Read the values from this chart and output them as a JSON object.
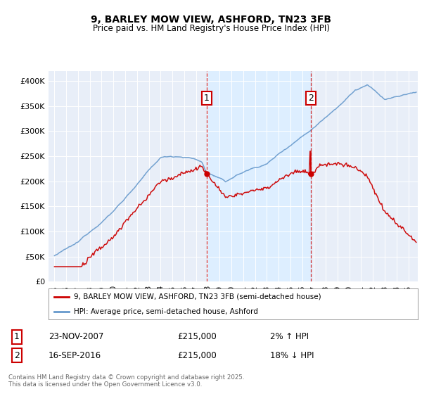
{
  "title": "9, BARLEY MOW VIEW, ASHFORD, TN23 3FB",
  "subtitle": "Price paid vs. HM Land Registry's House Price Index (HPI)",
  "legend_line1": "9, BARLEY MOW VIEW, ASHFORD, TN23 3FB (semi-detached house)",
  "legend_line2": "HPI: Average price, semi-detached house, Ashford",
  "annotation1_label": "1",
  "annotation1_date": "23-NOV-2007",
  "annotation1_price": "£215,000",
  "annotation1_hpi": "2% ↑ HPI",
  "annotation2_label": "2",
  "annotation2_date": "16-SEP-2016",
  "annotation2_price": "£215,000",
  "annotation2_hpi": "18% ↓ HPI",
  "vline1_x": 2007.9,
  "vline2_x": 2016.75,
  "sale1_x": 2007.9,
  "sale1_y": 215000,
  "sale2_x": 2016.75,
  "sale2_y": 215000,
  "ylim_min": 0,
  "ylim_max": 420000,
  "yticks": [
    0,
    50000,
    100000,
    150000,
    200000,
    250000,
    300000,
    350000,
    400000
  ],
  "ytick_labels": [
    "£0",
    "£50K",
    "£100K",
    "£150K",
    "£200K",
    "£250K",
    "£300K",
    "£350K",
    "£400K"
  ],
  "hpi_color": "#6699cc",
  "price_color": "#cc0000",
  "vline_color": "#cc0000",
  "shade_color": "#ddeeff",
  "background_color": "#e8eef8",
  "footer_text": "Contains HM Land Registry data © Crown copyright and database right 2025.\nThis data is licensed under the Open Government Licence v3.0.",
  "xmin": 1994.5,
  "xmax": 2025.8
}
